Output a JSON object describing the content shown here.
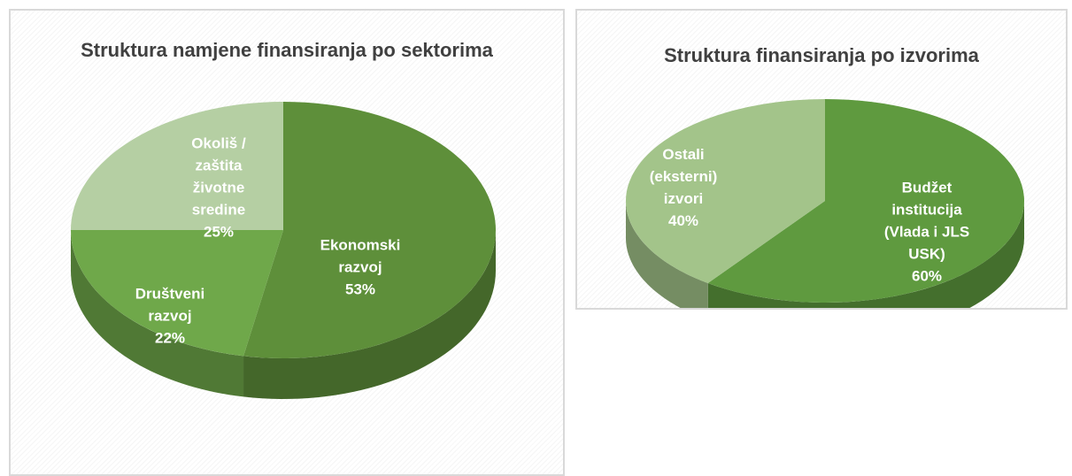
{
  "chart_data": [
    {
      "type": "pie",
      "title": "Struktura namjene finansiranja po sektorima",
      "categories": [
        "Ekonomski razvoj",
        "Društveni razvoj",
        "Okoliš / zaštita životne sredine"
      ],
      "values": [
        53,
        22,
        25
      ],
      "value_labels": [
        "53%",
        "22%",
        "25%"
      ],
      "colors": [
        "#5e8f3a",
        "#6fa84a",
        "#b5cfa3"
      ]
    },
    {
      "type": "pie",
      "title": "Struktura finansiranja po izvorima",
      "categories": [
        "Budžet institucija (Vlada i JLS USK)",
        "Ostali (eksterni) izvori"
      ],
      "values": [
        60,
        40
      ],
      "value_labels": [
        "60%",
        "40%"
      ],
      "colors": [
        "#5f9a3f",
        "#a3c48a"
      ]
    }
  ]
}
